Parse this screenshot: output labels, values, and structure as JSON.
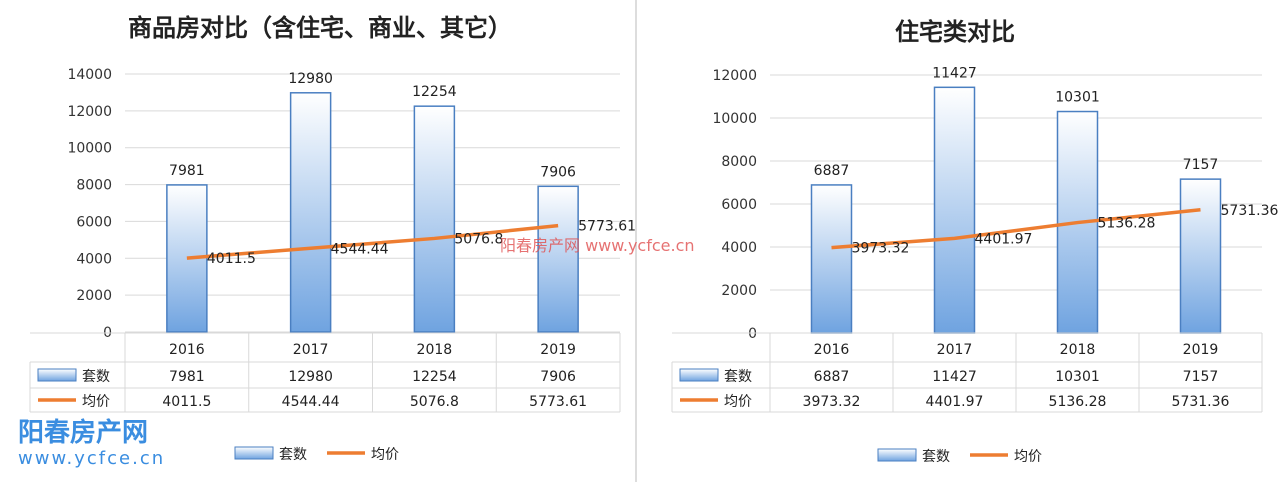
{
  "chart_data": [
    {
      "type": "bar+line",
      "title": "商品房对比（含住宅、商业、其它）",
      "categories": [
        "2016",
        "2017",
        "2018",
        "2019"
      ],
      "ylim": [
        0,
        14000
      ],
      "yticks": [
        0,
        2000,
        4000,
        6000,
        8000,
        10000,
        12000,
        14000
      ],
      "grid": true,
      "legend_placement": "bottom",
      "data_table": true,
      "series": [
        {
          "name": "套数",
          "type": "bar",
          "values": [
            7981,
            12980,
            12254,
            7906
          ],
          "labels": [
            "7981",
            "12980",
            "12254",
            "7906"
          ]
        },
        {
          "name": "均价",
          "type": "line",
          "values": [
            4011.5,
            4544.44,
            5076.8,
            5773.61
          ],
          "labels": [
            "4011.5",
            "4544.44",
            "5076.8",
            "5773.61"
          ]
        }
      ]
    },
    {
      "type": "bar+line",
      "title": "住宅类对比",
      "categories": [
        "2016",
        "2017",
        "2018",
        "2019"
      ],
      "ylim": [
        0,
        12000
      ],
      "yticks": [
        0,
        2000,
        4000,
        6000,
        8000,
        10000,
        12000
      ],
      "grid": true,
      "legend_placement": "bottom",
      "data_table": true,
      "series": [
        {
          "name": "套数",
          "type": "bar",
          "values": [
            6887,
            11427,
            10301,
            7157
          ],
          "labels": [
            "6887",
            "11427",
            "10301",
            "7157"
          ]
        },
        {
          "name": "均价",
          "type": "line",
          "values": [
            3973.32,
            4401.97,
            5136.28,
            5731.36
          ],
          "labels": [
            "3973.32",
            "4401.97",
            "5136.28",
            "5731.36"
          ]
        }
      ]
    }
  ],
  "colors": {
    "bar_edge": "#4a7fc1",
    "bar_fill_top": "#ffffff",
    "bar_fill_bottom": "#6fa3e0",
    "line": "#ed7d31",
    "grid": "#d9d9d9"
  },
  "watermark": {
    "center_text": "阳春房产网   www.ycfce.cn",
    "logo_text": "阳春房产网",
    "logo_url": "www.ycfce.cn"
  }
}
